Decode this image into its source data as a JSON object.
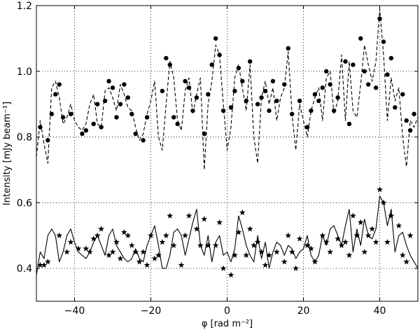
{
  "chart_data": {
    "type": "line",
    "title": "",
    "xlabel": "φ [rad m⁻²]",
    "ylabel": "Intensity [mJy beam⁻¹]",
    "xlim": [
      -50,
      50
    ],
    "ylim": [
      0.3,
      1.2
    ],
    "xticks": [
      -40,
      -20,
      0,
      20,
      40
    ],
    "yticks": [
      0.4,
      0.6,
      0.8,
      1.0,
      1.2
    ],
    "xtick_labels": [
      "−40",
      "−20",
      "0",
      "20",
      "40"
    ],
    "ytick_labels": [
      "0.4",
      "0.6",
      "0.8",
      "1.0",
      "1.2"
    ],
    "grid": true,
    "series": [
      {
        "style": "dashed-line",
        "color": "#000000",
        "x": [
          -50,
          -49,
          -48,
          -47,
          -46,
          -45,
          -44,
          -43,
          -42,
          -41,
          -40,
          -39,
          -38,
          -37,
          -36,
          -35,
          -34,
          -33,
          -32,
          -31,
          -30,
          -29,
          -28,
          -27,
          -26,
          -25,
          -24,
          -23,
          -22,
          -21,
          -20,
          -19,
          -18,
          -17,
          -16,
          -15,
          -14,
          -13,
          -12,
          -11,
          -10,
          -9,
          -8,
          -7,
          -6,
          -5,
          -4,
          -3,
          -2,
          -1,
          0,
          1,
          2,
          3,
          4,
          5,
          6,
          7,
          8,
          9,
          10,
          11,
          12,
          13,
          14,
          15,
          16,
          17,
          18,
          19,
          20,
          21,
          22,
          23,
          24,
          25,
          26,
          27,
          28,
          29,
          30,
          31,
          32,
          33,
          34,
          35,
          36,
          37,
          38,
          39,
          40,
          41,
          42,
          43,
          44,
          45,
          46,
          47,
          48,
          49,
          50
        ],
        "y": [
          0.74,
          0.85,
          0.78,
          0.72,
          0.95,
          0.97,
          0.92,
          0.84,
          0.86,
          0.9,
          0.85,
          0.83,
          0.82,
          0.84,
          0.9,
          0.93,
          0.84,
          0.83,
          0.94,
          0.95,
          0.92,
          0.88,
          0.96,
          0.93,
          0.89,
          0.88,
          0.83,
          0.79,
          0.81,
          0.87,
          0.91,
          0.97,
          0.8,
          0.76,
          0.9,
          1.03,
          0.98,
          0.85,
          0.82,
          0.94,
          0.98,
          0.87,
          0.93,
          0.98,
          0.7,
          0.9,
          0.97,
          1.08,
          1.05,
          0.9,
          0.76,
          0.83,
          0.98,
          1.02,
          0.95,
          0.88,
          1.02,
          0.8,
          0.72,
          0.92,
          0.97,
          0.9,
          0.95,
          0.85,
          0.92,
          0.95,
          1.06,
          0.87,
          0.76,
          0.9,
          0.85,
          0.8,
          0.88,
          0.92,
          0.95,
          0.85,
          0.98,
          1.0,
          0.87,
          0.91,
          1.05,
          0.85,
          1.03,
          0.88,
          0.86,
          0.96,
          1.08,
          1.02,
          0.97,
          1.03,
          1.19,
          1.05,
          0.85,
          0.98,
          0.91,
          0.95,
          0.8,
          0.71,
          0.85,
          0.83,
          0.86
        ]
      },
      {
        "style": "markers-circle",
        "color": "#000000",
        "x": [
          -49,
          -47,
          -46,
          -45,
          -44,
          -43,
          -41,
          -38,
          -37,
          -35,
          -34,
          -33,
          -32,
          -31,
          -30,
          -29,
          -28,
          -27,
          -26,
          -25,
          -24,
          -22,
          -21,
          -17,
          -16,
          -15,
          -14,
          -13,
          -11,
          -10,
          -9,
          -8,
          -6,
          -5,
          -4,
          -3,
          -2,
          -1,
          1,
          2,
          3,
          4,
          5,
          6,
          8,
          9,
          10,
          11,
          12,
          13,
          15,
          16,
          17,
          19,
          21,
          22,
          23,
          24,
          25,
          26,
          27,
          28,
          29,
          31,
          32,
          33,
          35,
          36,
          37,
          39,
          40,
          41,
          42,
          43,
          44,
          46,
          47,
          48,
          49
        ],
        "y": [
          0.83,
          0.79,
          0.87,
          0.93,
          0.96,
          0.86,
          0.87,
          0.81,
          0.82,
          0.84,
          0.9,
          0.83,
          0.91,
          0.97,
          0.95,
          0.86,
          0.9,
          0.96,
          0.92,
          0.87,
          0.81,
          0.79,
          0.86,
          0.94,
          1.04,
          1.02,
          0.86,
          0.84,
          0.97,
          0.95,
          0.88,
          0.92,
          0.81,
          0.93,
          1.02,
          1.1,
          1.05,
          0.88,
          0.89,
          0.94,
          1.01,
          0.97,
          0.91,
          1.03,
          0.9,
          0.92,
          0.94,
          0.88,
          0.97,
          0.91,
          0.96,
          1.07,
          0.87,
          0.91,
          0.83,
          0.88,
          0.93,
          0.91,
          0.95,
          1.0,
          0.96,
          0.88,
          0.92,
          1.03,
          0.84,
          1.02,
          1.1,
          1.0,
          0.96,
          0.95,
          1.16,
          1.09,
          0.99,
          1.04,
          0.89,
          0.93,
          0.85,
          0.82,
          0.87
        ]
      },
      {
        "style": "solid-line",
        "color": "#000000",
        "x": [
          -50,
          -49,
          -48,
          -47,
          -46,
          -45,
          -44,
          -43,
          -42,
          -41,
          -40,
          -39,
          -38,
          -37,
          -36,
          -35,
          -34,
          -33,
          -32,
          -31,
          -30,
          -29,
          -28,
          -27,
          -26,
          -25,
          -24,
          -23,
          -22,
          -21,
          -20,
          -19,
          -18,
          -17,
          -16,
          -15,
          -14,
          -13,
          -12,
          -11,
          -10,
          -9,
          -8,
          -7,
          -6,
          -5,
          -4,
          -3,
          -2,
          -1,
          0,
          1,
          2,
          3,
          4,
          5,
          6,
          7,
          8,
          9,
          10,
          11,
          12,
          13,
          14,
          15,
          16,
          17,
          18,
          19,
          20,
          21,
          22,
          23,
          24,
          25,
          26,
          27,
          28,
          29,
          30,
          31,
          32,
          33,
          34,
          35,
          36,
          37,
          38,
          39,
          40,
          41,
          42,
          43,
          44,
          45,
          46,
          47,
          48,
          49,
          50
        ],
        "y": [
          0.38,
          0.45,
          0.43,
          0.5,
          0.52,
          0.5,
          0.42,
          0.45,
          0.5,
          0.52,
          0.48,
          0.45,
          0.44,
          0.43,
          0.45,
          0.48,
          0.5,
          0.47,
          0.44,
          0.5,
          0.52,
          0.47,
          0.45,
          0.43,
          0.42,
          0.43,
          0.46,
          0.43,
          0.42,
          0.47,
          0.5,
          0.53,
          0.47,
          0.4,
          0.4,
          0.44,
          0.51,
          0.52,
          0.5,
          0.44,
          0.49,
          0.54,
          0.58,
          0.47,
          0.44,
          0.5,
          0.42,
          0.48,
          0.5,
          0.44,
          0.45,
          0.42,
          0.46,
          0.56,
          0.52,
          0.47,
          0.44,
          0.42,
          0.5,
          0.43,
          0.48,
          0.4,
          0.45,
          0.48,
          0.47,
          0.44,
          0.47,
          0.46,
          0.43,
          0.45,
          0.46,
          0.5,
          0.44,
          0.42,
          0.44,
          0.5,
          0.47,
          0.52,
          0.53,
          0.5,
          0.47,
          0.53,
          0.58,
          0.45,
          0.52,
          0.47,
          0.55,
          0.5,
          0.49,
          0.52,
          0.62,
          0.6,
          0.53,
          0.58,
          0.45,
          0.5,
          0.51,
          0.47,
          0.44,
          0.42,
          0.4
        ]
      },
      {
        "style": "markers-star",
        "color": "#000000",
        "x": [
          -49,
          -48,
          -47,
          -44,
          -42,
          -41,
          -39,
          -37,
          -36,
          -35,
          -34,
          -33,
          -31,
          -30,
          -29,
          -28,
          -27,
          -26,
          -25,
          -24,
          -23,
          -22,
          -21,
          -20,
          -19,
          -18,
          -17,
          -16,
          -15,
          -14,
          -12,
          -11,
          -10,
          -8,
          -7,
          -6,
          -5,
          -3,
          -2,
          -1,
          1,
          2,
          3,
          4,
          5,
          6,
          7,
          8,
          9,
          10,
          11,
          13,
          15,
          16,
          17,
          18,
          19,
          21,
          22,
          23,
          25,
          26,
          27,
          29,
          30,
          31,
          32,
          33,
          34,
          35,
          36,
          37,
          38,
          39,
          40,
          41,
          42,
          43,
          45,
          46,
          47,
          48
        ],
        "y": [
          0.41,
          0.41,
          0.42,
          0.5,
          0.45,
          0.48,
          0.46,
          0.46,
          0.45,
          0.49,
          0.5,
          0.52,
          0.44,
          0.45,
          0.48,
          0.43,
          0.51,
          0.5,
          0.47,
          0.45,
          0.42,
          0.45,
          0.41,
          0.5,
          0.43,
          0.44,
          0.48,
          0.5,
          0.56,
          0.47,
          0.41,
          0.5,
          0.56,
          0.52,
          0.47,
          0.55,
          0.47,
          0.47,
          0.54,
          0.4,
          0.38,
          0.44,
          0.51,
          0.57,
          0.44,
          0.52,
          0.47,
          0.48,
          0.45,
          0.41,
          0.44,
          0.45,
          0.42,
          0.5,
          0.45,
          0.4,
          0.49,
          0.47,
          0.46,
          0.42,
          0.5,
          0.48,
          0.45,
          0.49,
          0.47,
          0.48,
          0.44,
          0.56,
          0.5,
          0.54,
          0.45,
          0.5,
          0.52,
          0.48,
          0.64,
          0.6,
          0.48,
          0.56,
          0.53,
          0.44,
          0.42,
          0.5
        ]
      }
    ]
  }
}
